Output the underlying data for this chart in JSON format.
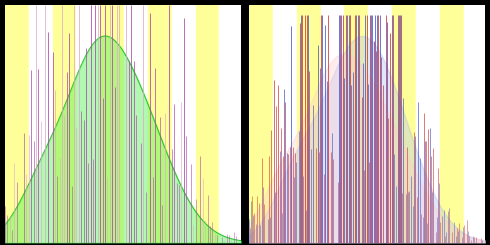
{
  "background_color": "#000000",
  "panel_bg": "#ffffcc",
  "yellow_stripe": "#ffff99",
  "white_stripe": "#ffffff",
  "green_fill": "#55ee55",
  "green_fill_alpha": 0.45,
  "green_line": "#22bb22",
  "green_line_alpha": 0.9,
  "purple_color": "#aa44aa",
  "pink_color": "#ddaacc",
  "blue_color": "#4455cc",
  "red_color": "#cc3333",
  "light_blue_fill": "#aabbee",
  "light_red_fill": "#ffcccc",
  "light_blue_alpha": 0.35,
  "light_red_alpha": 0.35,
  "n_bars": 100,
  "seed": 12345,
  "figwidth": 4.9,
  "figheight": 2.45,
  "dpi": 100
}
